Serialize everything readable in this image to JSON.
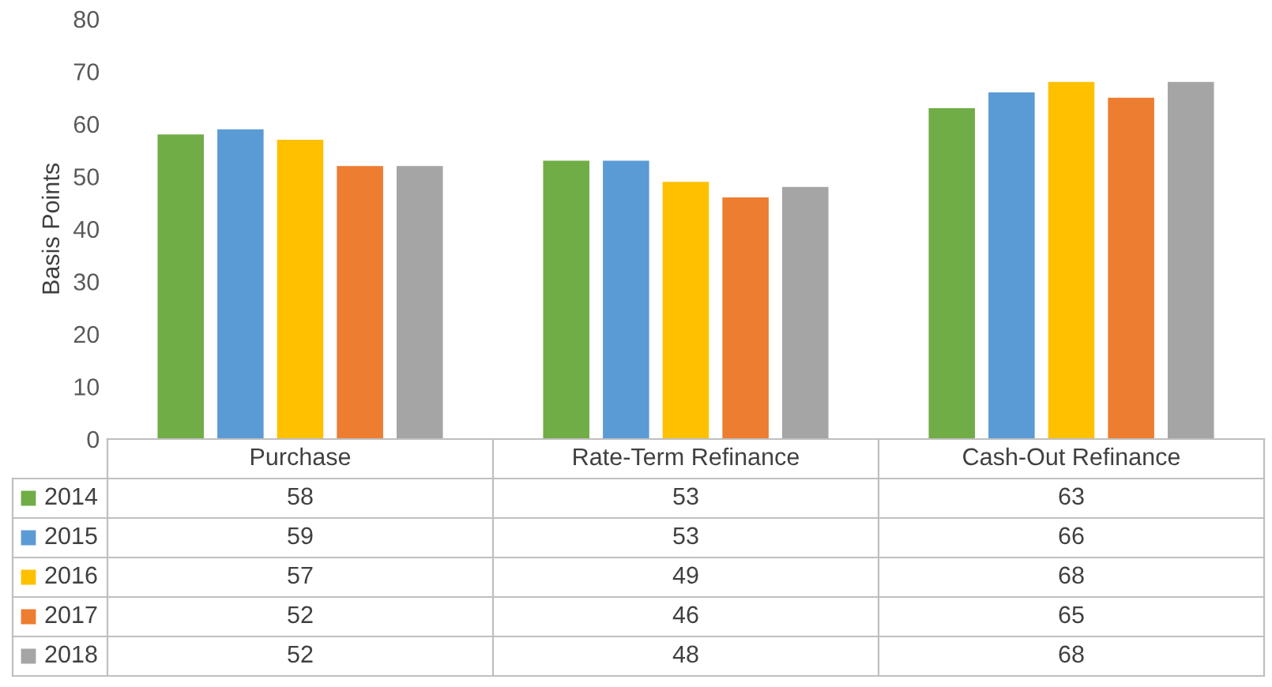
{
  "chart_data": {
    "type": "bar",
    "ylabel": "Basis Points",
    "categories": [
      "Purchase",
      "Rate-Term Refinance",
      "Cash-Out Refinance"
    ],
    "series": [
      {
        "name": "2014",
        "color": "#70ad47",
        "values": [
          58,
          53,
          63
        ]
      },
      {
        "name": "2015",
        "color": "#5b9bd5",
        "values": [
          59,
          53,
          66
        ]
      },
      {
        "name": "2016",
        "color": "#ffc000",
        "values": [
          57,
          49,
          68
        ]
      },
      {
        "name": "2017",
        "color": "#ed7d31",
        "values": [
          52,
          46,
          65
        ]
      },
      {
        "name": "2018",
        "color": "#a5a5a5",
        "values": [
          52,
          48,
          68
        ]
      }
    ],
    "ylim": [
      0,
      80
    ],
    "yticks": [
      0,
      10,
      20,
      30,
      40,
      50,
      60,
      70,
      80
    ],
    "grid": false,
    "data_labels": true,
    "legend": "bottom"
  }
}
